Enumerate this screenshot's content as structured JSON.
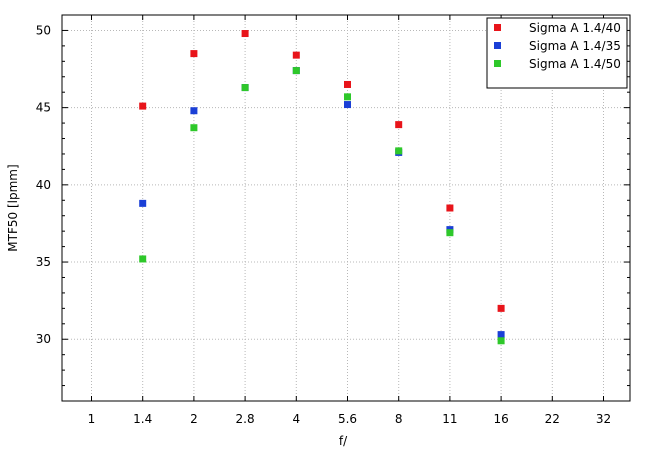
{
  "chart_data": {
    "type": "scatter",
    "xlabel": "f/",
    "ylabel": "MTF50 [lpmm]",
    "x_ticks": [
      "1",
      "1.4",
      "2",
      "2.8",
      "4",
      "5.6",
      "8",
      "11",
      "16",
      "22",
      "32"
    ],
    "ylim": [
      26,
      51
    ],
    "y_ticks": [
      30,
      35,
      40,
      45,
      50
    ],
    "grid": true,
    "legend_position": "top-right",
    "series": [
      {
        "name": "Sigma A 1.4/40",
        "color": "#e8141a",
        "points": [
          {
            "x": "1.4",
            "y": 45.1
          },
          {
            "x": "2",
            "y": 48.5
          },
          {
            "x": "2.8",
            "y": 49.8
          },
          {
            "x": "4",
            "y": 48.4
          },
          {
            "x": "5.6",
            "y": 46.5
          },
          {
            "x": "8",
            "y": 43.9
          },
          {
            "x": "11",
            "y": 38.5
          },
          {
            "x": "16",
            "y": 32.0
          }
        ]
      },
      {
        "name": "Sigma A 1.4/35",
        "color": "#1a3fd6",
        "points": [
          {
            "x": "1.4",
            "y": 38.8
          },
          {
            "x": "2",
            "y": 44.8
          },
          {
            "x": "2.8",
            "y": 46.3
          },
          {
            "x": "4",
            "y": 47.4
          },
          {
            "x": "5.6",
            "y": 45.2
          },
          {
            "x": "8",
            "y": 42.1
          },
          {
            "x": "11",
            "y": 37.1
          },
          {
            "x": "16",
            "y": 30.3
          }
        ]
      },
      {
        "name": "Sigma A 1.4/50",
        "color": "#2ec82a",
        "points": [
          {
            "x": "1.4",
            "y": 35.2
          },
          {
            "x": "2",
            "y": 43.7
          },
          {
            "x": "2.8",
            "y": 46.3
          },
          {
            "x": "4",
            "y": 47.4
          },
          {
            "x": "5.6",
            "y": 45.7
          },
          {
            "x": "8",
            "y": 42.2
          },
          {
            "x": "11",
            "y": 36.9
          },
          {
            "x": "16",
            "y": 29.9
          }
        ]
      }
    ]
  }
}
